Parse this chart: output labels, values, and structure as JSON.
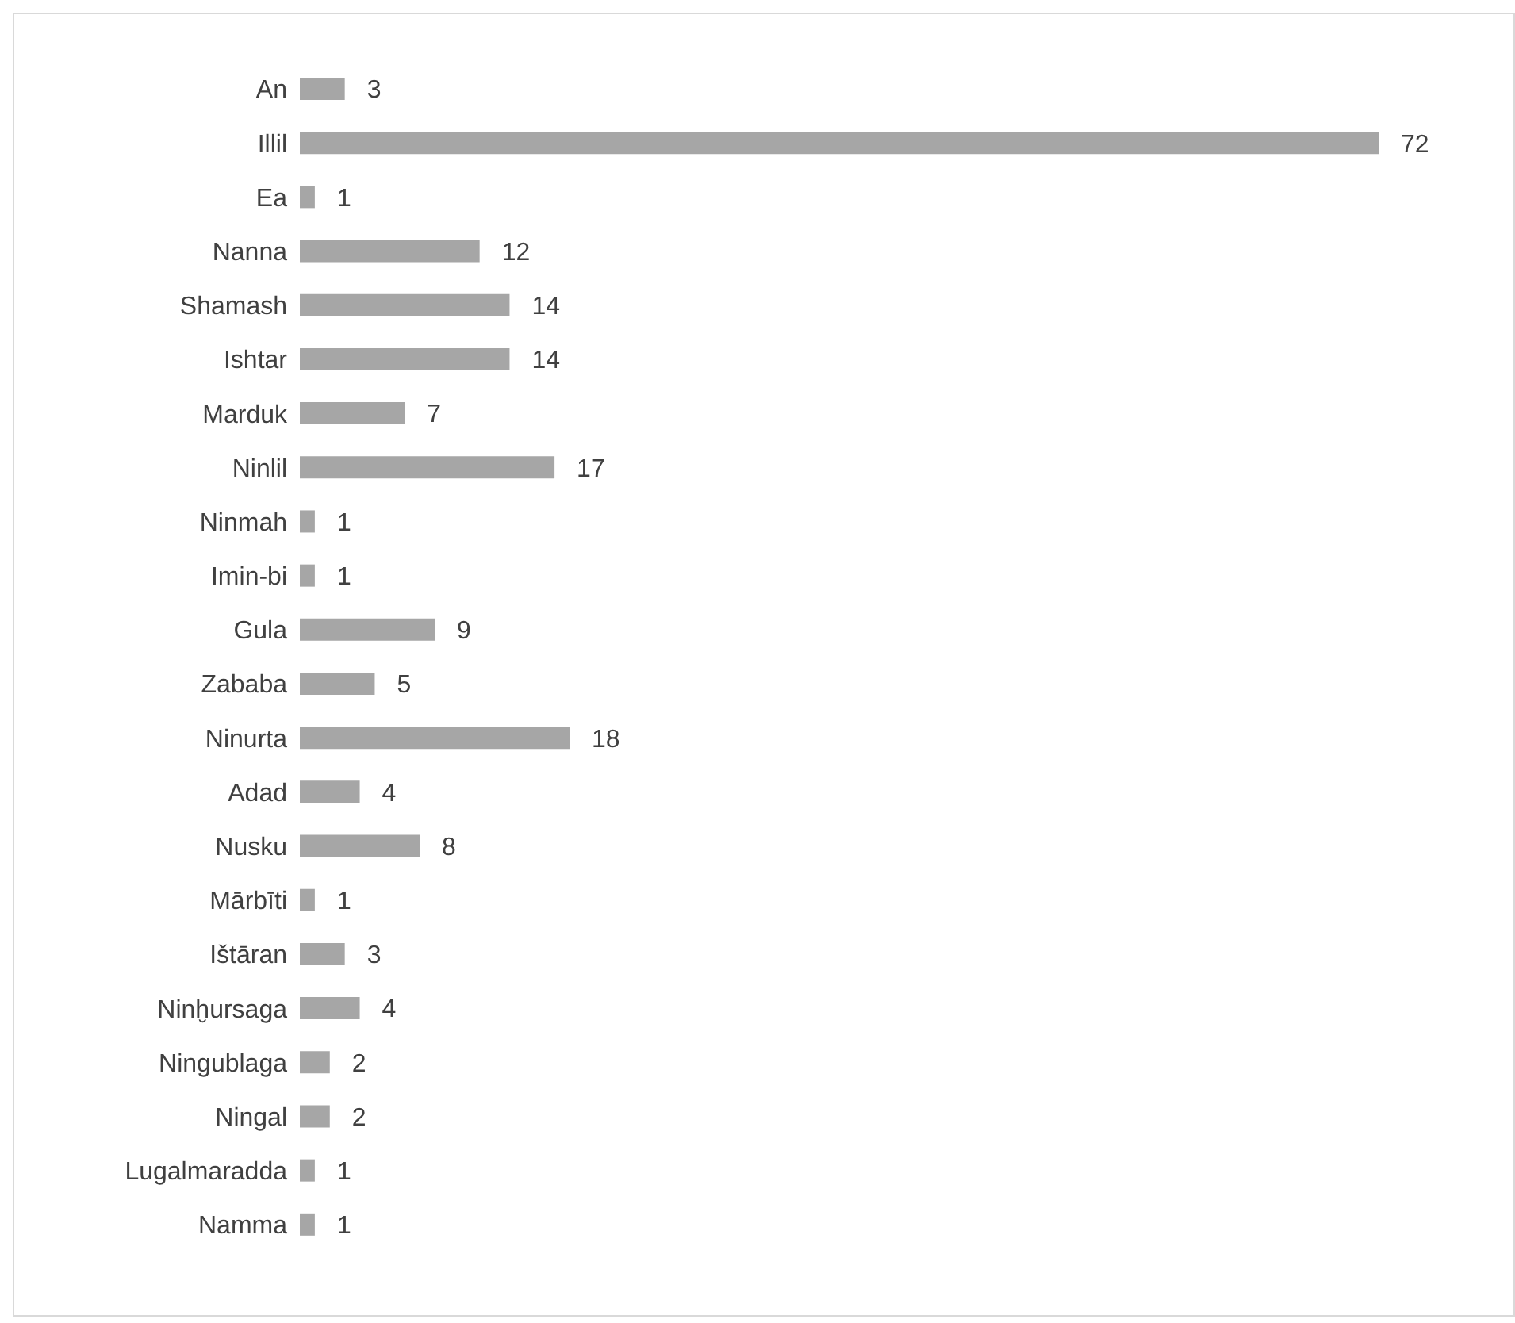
{
  "chart_data": {
    "type": "bar",
    "orientation": "horizontal",
    "categories": [
      "An",
      "Illil",
      "Ea",
      "Nanna",
      "Shamash",
      "Ishtar",
      "Marduk",
      "Ninlil",
      "Ninmah",
      "Imin-bi",
      "Gula",
      "Zababa",
      "Ninurta",
      "Adad",
      "Nusku",
      "Mārbīti",
      "Ištāran",
      "Ninḫursaga",
      "Ningublaga",
      "Ningal",
      "Lugalmaradda",
      "Namma"
    ],
    "values": [
      3,
      72,
      1,
      12,
      14,
      14,
      7,
      17,
      1,
      1,
      9,
      5,
      18,
      4,
      8,
      1,
      3,
      4,
      2,
      2,
      1,
      1
    ],
    "color": "#a6a6a6",
    "data_labels": true
  }
}
